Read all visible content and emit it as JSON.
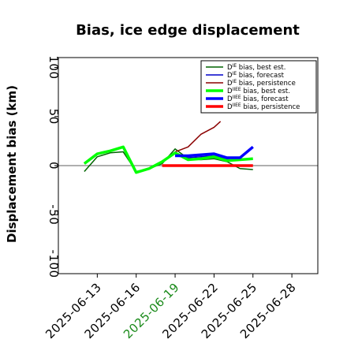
{
  "chart_data": {
    "type": "line",
    "title": "Bias, ice edge displacement",
    "ylabel": "Displacement bias (km)",
    "xlabel": "",
    "ylim": [
      -110,
      110
    ],
    "xlim": [
      "2025-06-10",
      "2025-06-30"
    ],
    "yticks": [
      -100,
      -50,
      0,
      50,
      100
    ],
    "ytick_labels": [
      "-100",
      "-50",
      "0",
      "50",
      "100"
    ],
    "xticks": [
      "2025-06-13",
      "2025-06-16",
      "2025-06-19",
      "2025-06-22",
      "2025-06-25",
      "2025-06-28"
    ],
    "xtick_labels": [
      "2025-06-13",
      "2025-06-16",
      "2025-06-19",
      "2025-06-22",
      "2025-06-25",
      "2025-06-28"
    ],
    "xtick_colors": [
      "#000000",
      "#000000",
      "#1a8a1a",
      "#000000",
      "#000000",
      "#000000"
    ],
    "zero_line": 0,
    "grid": false,
    "legend_position": "top-right",
    "legend_labels": [
      {
        "prefix": "D",
        "sup": "IE",
        "rest": " bias, best est."
      },
      {
        "prefix": "D",
        "sup": "IE",
        "rest": " bias, forecast"
      },
      {
        "prefix": "D",
        "sup": "IE",
        "rest": " bias, persistence"
      },
      {
        "prefix": "D",
        "sup": "IIEE",
        "rest": " bias, best est."
      },
      {
        "prefix": "D",
        "sup": "IIEE",
        "rest": " bias, forecast"
      },
      {
        "prefix": "D",
        "sup": "IIEE",
        "rest": " bias, persistence"
      }
    ],
    "series": [
      {
        "color": "#006400",
        "width": 1.5,
        "points": [
          [
            "2025-06-12",
            -6
          ],
          [
            "2025-06-13",
            9
          ],
          [
            "2025-06-14",
            13
          ],
          [
            "2025-06-15",
            14
          ],
          [
            "2025-06-16",
            -6
          ],
          [
            "2025-06-17",
            -3
          ],
          [
            "2025-06-18",
            2
          ],
          [
            "2025-06-19",
            17
          ],
          [
            "2025-06-20",
            7
          ],
          [
            "2025-06-21",
            6
          ],
          [
            "2025-06-22",
            7
          ],
          [
            "2025-06-23",
            4
          ],
          [
            "2025-06-24",
            -3
          ],
          [
            "2025-06-25",
            -4
          ]
        ]
      },
      {
        "color": "#0000c8",
        "width": 1.5,
        "points": [
          [
            "2025-06-19",
            10
          ],
          [
            "2025-06-20",
            8
          ],
          [
            "2025-06-21",
            9
          ],
          [
            "2025-06-22",
            10
          ],
          [
            "2025-06-23",
            7
          ],
          [
            "2025-06-24",
            8
          ],
          [
            "2025-06-25",
            19
          ]
        ]
      },
      {
        "color": "#8b0000",
        "width": 1.5,
        "points": [
          [
            "2025-06-19",
            14
          ],
          [
            "2025-06-20",
            19
          ],
          [
            "2025-06-21",
            32
          ],
          [
            "2025-06-22",
            39
          ],
          [
            "2025-06-22.5",
            45
          ]
        ]
      },
      {
        "color": "#00ff00",
        "width": 3.5,
        "points": [
          [
            "2025-06-12",
            2
          ],
          [
            "2025-06-13",
            12
          ],
          [
            "2025-06-14",
            15
          ],
          [
            "2025-06-15",
            19
          ],
          [
            "2025-06-16",
            -7
          ],
          [
            "2025-06-17",
            -3
          ],
          [
            "2025-06-18",
            4
          ],
          [
            "2025-06-19",
            13
          ],
          [
            "2025-06-20",
            6
          ],
          [
            "2025-06-21",
            7
          ],
          [
            "2025-06-22",
            9
          ],
          [
            "2025-06-23",
            5
          ],
          [
            "2025-06-24",
            6
          ],
          [
            "2025-06-25",
            7
          ]
        ]
      },
      {
        "color": "#0000ff",
        "width": 3.5,
        "points": [
          [
            "2025-06-19",
            10
          ],
          [
            "2025-06-20",
            10
          ],
          [
            "2025-06-21",
            11
          ],
          [
            "2025-06-22",
            12
          ],
          [
            "2025-06-23",
            8
          ],
          [
            "2025-06-24",
            8
          ],
          [
            "2025-06-25",
            19
          ]
        ]
      },
      {
        "color": "#ff0000",
        "width": 3.5,
        "points": [
          [
            "2025-06-18",
            0
          ],
          [
            "2025-06-19",
            0
          ],
          [
            "2025-06-20",
            0
          ],
          [
            "2025-06-21",
            0
          ],
          [
            "2025-06-22",
            0
          ],
          [
            "2025-06-23",
            0
          ],
          [
            "2025-06-24",
            0
          ],
          [
            "2025-06-25",
            0
          ]
        ]
      }
    ]
  }
}
